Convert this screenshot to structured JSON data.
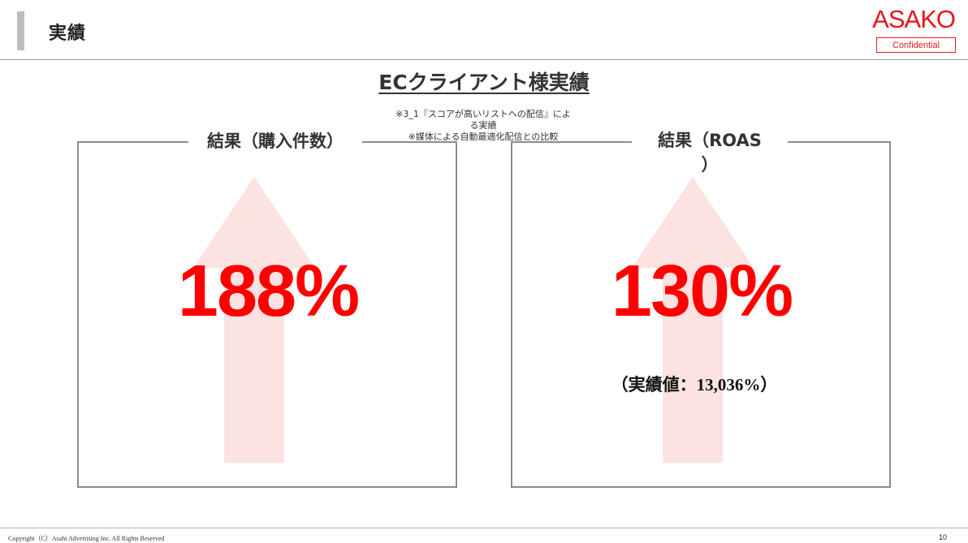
{
  "header": {
    "title": "実績",
    "logo_text": "ASAKO",
    "confidential_label": "Confidential"
  },
  "slide": {
    "section_title": "ECクライアント様実績",
    "notes": [
      "※3_1『スコアが高いリストへの配信』によ",
      "る実績",
      "※媒体による自動最適化配信との比較"
    ],
    "left_panel": {
      "label": "結果（購入件数）",
      "value": "188%"
    },
    "right_panel": {
      "label_line1": "結果（ROAS",
      "label_line2": "）",
      "value": "130%",
      "subvalue": "（実績値：13,036%）"
    }
  },
  "footer": {
    "copyright": "Copyright（C）Asahi Advertising Inc. All Rights Reserved",
    "page_number": "10"
  },
  "colors": {
    "accent_red": "#ff0000",
    "logo_red": "#e8141b",
    "arrow_pink": "#fde2e2"
  }
}
